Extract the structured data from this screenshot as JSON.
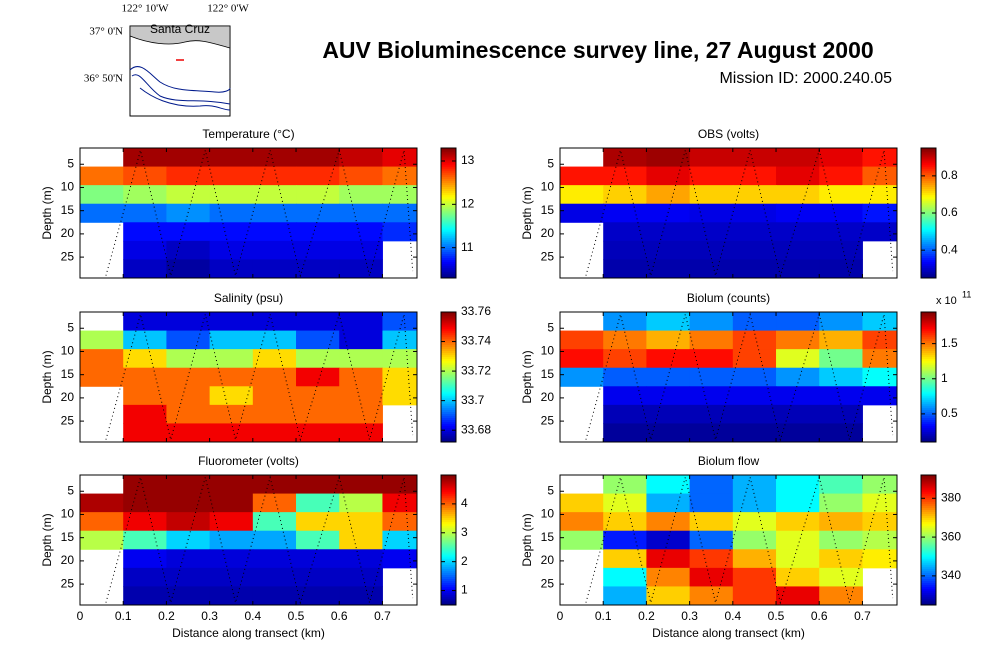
{
  "title": "AUV Bioluminescence survey line, 27 August 2000",
  "subtitle": "Mission ID: 2000.240.05",
  "map": {
    "lon_labels": [
      "122° 10'W",
      "122° 0'W"
    ],
    "lat_labels": [
      "37° 0'N",
      "36° 50'N"
    ],
    "place": "Santa Cruz"
  },
  "track": {
    "x": [
      0.06,
      0.14,
      0.21,
      0.29,
      0.36,
      0.44,
      0.51,
      0.6,
      0.67,
      0.75,
      0.77
    ],
    "y": [
      29,
      2,
      29,
      2,
      29,
      2,
      29,
      2,
      29,
      2,
      28
    ]
  },
  "chart_data": [
    {
      "type": "heatmap",
      "title": "Temperature (°C)",
      "ylabel": "Depth (m)",
      "x": [
        0.05,
        0.15,
        0.25,
        0.35,
        0.45,
        0.55,
        0.65,
        0.75
      ],
      "y": [
        3.5,
        7.5,
        11.5,
        15.5,
        19.5,
        23.5,
        27.5
      ],
      "xlim": [
        0,
        0.78
      ],
      "ylim": [
        29.5,
        1.5
      ],
      "xticks": [
        0,
        0.1,
        0.2,
        0.3,
        0.4,
        0.5,
        0.6,
        0.7
      ],
      "yticks": [
        5,
        10,
        15,
        20,
        25
      ],
      "colormap": "jet",
      "clim": [
        10.3,
        13.3
      ],
      "cticks": [
        11,
        12,
        13
      ],
      "values": [
        [
          null,
          13.2,
          13.2,
          13.2,
          13.2,
          13.2,
          13.1,
          13.0
        ],
        [
          12.6,
          12.7,
          12.8,
          12.8,
          12.8,
          12.8,
          12.7,
          12.6
        ],
        [
          11.8,
          11.9,
          12.0,
          12.0,
          12.0,
          12.0,
          11.9,
          11.9
        ],
        [
          11.0,
          11.0,
          11.1,
          11.0,
          11.0,
          11.0,
          11.0,
          11.0
        ],
        [
          null,
          10.7,
          10.7,
          10.7,
          10.7,
          10.7,
          10.7,
          10.8
        ],
        [
          null,
          10.6,
          10.5,
          10.6,
          10.6,
          10.6,
          10.6,
          null
        ],
        [
          null,
          10.5,
          10.4,
          10.5,
          10.5,
          10.5,
          10.5,
          null
        ]
      ]
    },
    {
      "type": "heatmap",
      "title": "OBS (volts)",
      "ylabel": "Depth (m)",
      "x": [
        0.05,
        0.15,
        0.25,
        0.35,
        0.45,
        0.55,
        0.65,
        0.75
      ],
      "y": [
        3.5,
        7.5,
        11.5,
        15.5,
        19.5,
        23.5,
        27.5
      ],
      "xlim": [
        0,
        0.78
      ],
      "ylim": [
        29.5,
        1.5
      ],
      "xticks": [
        0,
        0.1,
        0.2,
        0.3,
        0.4,
        0.5,
        0.6,
        0.7
      ],
      "yticks": [
        5,
        10,
        15,
        20,
        25
      ],
      "colormap": "jet",
      "clim": [
        0.25,
        0.95
      ],
      "cticks": [
        0.4,
        0.6,
        0.8
      ],
      "values": [
        [
          null,
          0.92,
          0.93,
          0.9,
          0.9,
          0.9,
          0.88,
          0.85
        ],
        [
          0.85,
          0.85,
          0.88,
          0.85,
          0.85,
          0.88,
          0.85,
          0.8
        ],
        [
          0.7,
          0.72,
          0.75,
          0.72,
          0.72,
          0.72,
          0.7,
          0.7
        ],
        [
          0.32,
          0.33,
          0.33,
          0.32,
          0.32,
          0.33,
          0.33,
          0.35
        ],
        [
          null,
          0.3,
          0.3,
          0.3,
          0.3,
          0.3,
          0.3,
          0.3
        ],
        [
          null,
          0.29,
          0.29,
          0.29,
          0.29,
          0.29,
          0.29,
          null
        ],
        [
          null,
          0.28,
          0.28,
          0.28,
          0.28,
          0.28,
          0.28,
          null
        ]
      ]
    },
    {
      "type": "heatmap",
      "title": "Salinity (psu)",
      "ylabel": "Depth (m)",
      "x": [
        0.05,
        0.15,
        0.25,
        0.35,
        0.45,
        0.55,
        0.65,
        0.75
      ],
      "y": [
        3.5,
        7.5,
        11.5,
        15.5,
        19.5,
        23.5,
        27.5
      ],
      "xlim": [
        0,
        0.78
      ],
      "ylim": [
        29.5,
        1.5
      ],
      "xticks": [
        0,
        0.1,
        0.2,
        0.3,
        0.4,
        0.5,
        0.6,
        0.7
      ],
      "yticks": [
        5,
        10,
        15,
        20,
        25
      ],
      "colormap": "jet",
      "clim": [
        33.672,
        33.76
      ],
      "cticks": [
        33.68,
        33.7,
        33.72,
        33.74,
        33.76
      ],
      "values": [
        [
          null,
          33.68,
          33.68,
          33.68,
          33.68,
          33.68,
          33.68,
          33.69
        ],
        [
          33.72,
          33.7,
          33.69,
          33.7,
          33.7,
          33.69,
          33.68,
          33.7
        ],
        [
          33.74,
          33.73,
          33.72,
          33.72,
          33.73,
          33.72,
          33.72,
          33.72
        ],
        [
          33.74,
          33.74,
          33.74,
          33.74,
          33.74,
          33.75,
          33.74,
          33.73
        ],
        [
          null,
          33.74,
          33.74,
          33.73,
          33.74,
          33.74,
          33.74,
          33.73
        ],
        [
          null,
          33.75,
          33.74,
          33.74,
          33.74,
          33.74,
          33.74,
          null
        ],
        [
          null,
          33.75,
          33.75,
          33.75,
          33.75,
          33.75,
          33.75,
          null
        ]
      ]
    },
    {
      "type": "heatmap",
      "title": "Biolum (counts)",
      "ylabel": "Depth (m)",
      "x": [
        0.05,
        0.15,
        0.25,
        0.35,
        0.45,
        0.55,
        0.65,
        0.75
      ],
      "y": [
        3.5,
        7.5,
        11.5,
        15.5,
        19.5,
        23.5,
        27.5
      ],
      "xlim": [
        0,
        0.78
      ],
      "ylim": [
        29.5,
        1.5
      ],
      "xticks": [
        0,
        0.1,
        0.2,
        0.3,
        0.4,
        0.5,
        0.6,
        0.7
      ],
      "yticks": [
        5,
        10,
        15,
        20,
        25
      ],
      "colormap": "jet",
      "clim": [
        0.1,
        1.95
      ],
      "cticks": [
        0.5,
        1,
        1.5
      ],
      "cmultiplier": "x 10",
      "cexponent": "11",
      "values": [
        [
          null,
          0.6,
          0.7,
          0.6,
          0.5,
          0.5,
          0.6,
          0.7
        ],
        [
          1.6,
          1.5,
          1.4,
          1.5,
          1.6,
          1.5,
          1.4,
          1.6
        ],
        [
          1.7,
          1.6,
          1.7,
          1.7,
          1.6,
          1.2,
          1.0,
          1.5
        ],
        [
          0.6,
          0.5,
          0.5,
          0.5,
          0.5,
          0.6,
          0.7,
          0.8
        ],
        [
          null,
          0.3,
          0.3,
          0.3,
          0.3,
          0.3,
          0.3,
          0.3
        ],
        [
          null,
          0.2,
          0.2,
          0.2,
          0.2,
          0.2,
          0.2,
          null
        ],
        [
          null,
          0.15,
          0.15,
          0.15,
          0.15,
          0.15,
          0.15,
          null
        ]
      ]
    },
    {
      "type": "heatmap",
      "title": "Fluorometer (volts)",
      "ylabel": "Depth (m)",
      "xlabel": "Distance along transect (km)",
      "x": [
        0.05,
        0.15,
        0.25,
        0.35,
        0.45,
        0.55,
        0.65,
        0.75
      ],
      "y": [
        3.5,
        7.5,
        11.5,
        15.5,
        19.5,
        23.5,
        27.5
      ],
      "xlim": [
        0,
        0.78
      ],
      "ylim": [
        29.5,
        1.5
      ],
      "xticks": [
        0,
        0.1,
        0.2,
        0.3,
        0.4,
        0.5,
        0.6,
        0.7
      ],
      "yticks": [
        5,
        10,
        15,
        20,
        25
      ],
      "colormap": "jet",
      "clim": [
        0.5,
        5
      ],
      "cticks": [
        1,
        2,
        3,
        4
      ],
      "values": [
        [
          null,
          4.9,
          4.9,
          4.9,
          4.9,
          4.9,
          4.9,
          4.9
        ],
        [
          4.8,
          4.9,
          4.9,
          4.9,
          4.0,
          2.5,
          3.0,
          4.5
        ],
        [
          4.0,
          4.5,
          4.7,
          4.5,
          2.5,
          3.5,
          3.5,
          4.0
        ],
        [
          3.0,
          2.5,
          2.0,
          1.8,
          1.8,
          2.5,
          3.5,
          2.0
        ],
        [
          null,
          1.0,
          0.9,
          0.9,
          0.9,
          0.9,
          0.9,
          1.0
        ],
        [
          null,
          0.8,
          0.8,
          0.8,
          0.8,
          0.8,
          0.8,
          null
        ],
        [
          null,
          0.7,
          0.7,
          0.7,
          0.7,
          0.7,
          0.7,
          null
        ]
      ]
    },
    {
      "type": "heatmap",
      "title": "Biolum flow",
      "ylabel": "Depth (m)",
      "xlabel": "Distance along transect (km)",
      "x": [
        0.05,
        0.15,
        0.25,
        0.35,
        0.45,
        0.55,
        0.65,
        0.75
      ],
      "y": [
        3.5,
        7.5,
        11.5,
        15.5,
        19.5,
        23.5,
        27.5
      ],
      "xlim": [
        0,
        0.78
      ],
      "ylim": [
        29.5,
        1.5
      ],
      "xticks": [
        0,
        0.1,
        0.2,
        0.3,
        0.4,
        0.5,
        0.6,
        0.7
      ],
      "yticks": [
        5,
        10,
        15,
        20,
        25
      ],
      "colormap": "jet",
      "clim": [
        325,
        392
      ],
      "cticks": [
        340,
        360,
        380
      ],
      "values": [
        [
          null,
          360,
          350,
          340,
          345,
          350,
          355,
          360
        ],
        [
          370,
          365,
          345,
          340,
          345,
          350,
          360,
          365
        ],
        [
          375,
          370,
          375,
          370,
          365,
          370,
          372,
          370
        ],
        [
          360,
          335,
          330,
          340,
          360,
          365,
          360,
          362
        ],
        [
          null,
          370,
          385,
          380,
          372,
          365,
          370,
          368
        ],
        [
          null,
          350,
          375,
          385,
          380,
          370,
          365,
          null
        ],
        [
          null,
          345,
          370,
          375,
          380,
          385,
          375,
          null
        ]
      ]
    }
  ]
}
